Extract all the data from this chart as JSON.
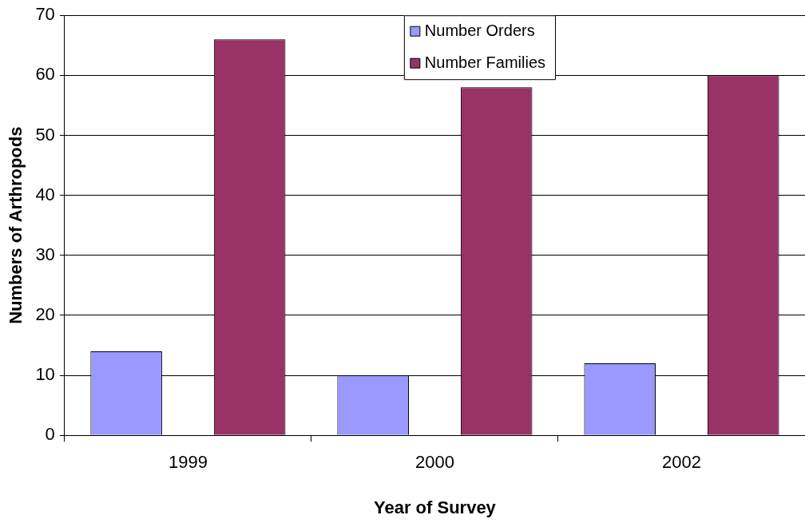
{
  "chart_data": {
    "type": "bar",
    "xlabel": "Year of Survey",
    "ylabel": "Numbers of Arthropods",
    "categories": [
      "1999",
      "2000",
      "2002"
    ],
    "series": [
      {
        "name": "Number Orders",
        "color": "#9999ff",
        "values": [
          14,
          10,
          12
        ]
      },
      {
        "name": "Number Families",
        "color": "#993366",
        "values": [
          66,
          58,
          60
        ]
      }
    ],
    "ylim": [
      0,
      70
    ],
    "yticks": [
      0,
      10,
      20,
      30,
      40,
      50,
      60,
      70
    ],
    "grid": "y",
    "legend": "top"
  }
}
